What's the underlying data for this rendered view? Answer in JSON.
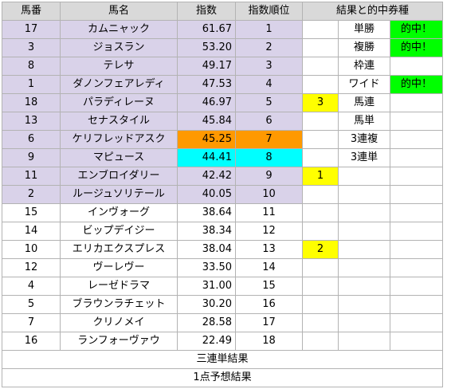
{
  "headers": [
    "馬番",
    "馬名",
    "指数",
    "指数順位",
    "結果と的中券種"
  ],
  "rows": [
    {
      "num": "17",
      "name": "カムニャック",
      "index": "61.67",
      "rank": "1",
      "result": "",
      "bet": "単勝",
      "hit": "的中！"
    },
    {
      "num": "3",
      "name": "ジョスラン",
      "index": "53.20",
      "rank": "2",
      "result": "",
      "bet": "複勝",
      "hit": "的中！"
    },
    {
      "num": "8",
      "name": "テレサ",
      "index": "49.17",
      "rank": "3",
      "result": "",
      "bet": "枠連",
      "hit": ""
    },
    {
      "num": "1",
      "name": "ダノンフェアレディ",
      "index": "47.53",
      "rank": "4",
      "result": "",
      "bet": "ワイド",
      "hit": "的中！"
    },
    {
      "num": "18",
      "name": "パラディレーヌ",
      "index": "46.97",
      "rank": "5",
      "result": "3",
      "bet": "馬連",
      "hit": ""
    },
    {
      "num": "13",
      "name": "セナスタイル",
      "index": "45.84",
      "rank": "6",
      "result": "",
      "bet": "馬単",
      "hit": ""
    },
    {
      "num": "6",
      "name": "ケリフレッドアスク",
      "index": "45.25",
      "rank": "7",
      "result": "",
      "bet": "3連複",
      "hit": ""
    },
    {
      "num": "9",
      "name": "マピュース",
      "index": "44.41",
      "rank": "8",
      "result": "",
      "bet": "3連単",
      "hit": ""
    },
    {
      "num": "11",
      "name": "エンブロイダリー",
      "index": "42.42",
      "rank": "9",
      "result": "1",
      "bet": "",
      "hit": ""
    },
    {
      "num": "2",
      "name": "ルージュソリテール",
      "index": "40.05",
      "rank": "10",
      "result": "",
      "bet": "",
      "hit": ""
    },
    {
      "num": "15",
      "name": "インヴォーグ",
      "index": "38.64",
      "rank": "11",
      "result": "",
      "bet": "",
      "hit": ""
    },
    {
      "num": "14",
      "name": "ビップデイジー",
      "index": "38.34",
      "rank": "12",
      "result": "",
      "bet": "",
      "hit": ""
    },
    {
      "num": "10",
      "name": "エリカエクスプレス",
      "index": "38.04",
      "rank": "13",
      "result": "2",
      "bet": "",
      "hit": ""
    },
    {
      "num": "12",
      "name": "ヴーレヴー",
      "index": "33.50",
      "rank": "14",
      "result": "",
      "bet": "",
      "hit": ""
    },
    {
      "num": "4",
      "name": "レーゼドラマ",
      "index": "31.00",
      "rank": "15",
      "result": "",
      "bet": "",
      "hit": ""
    },
    {
      "num": "5",
      "name": "ブラウンラチェット",
      "index": "30.20",
      "rank": "16",
      "result": "",
      "bet": "",
      "hit": ""
    },
    {
      "num": "7",
      "name": "クリノメイ",
      "index": "28.58",
      "rank": "17",
      "result": "",
      "bet": "",
      "hit": ""
    },
    {
      "num": "16",
      "name": "ランフォーヴァウ",
      "index": "22.49",
      "rank": "18",
      "result": "",
      "bet": "",
      "hit": ""
    }
  ],
  "footer": {
    "trifecta": "三連単結果",
    "one_point": "1点予想結果"
  },
  "colors": {
    "header": "#d9d9d9",
    "top_ten": "#d9d2e9",
    "orange_highlight": "#ff9900",
    "cyan_highlight": "#00ffff",
    "result_yellow": "#ffff00",
    "hit_green": "#00ff00"
  }
}
